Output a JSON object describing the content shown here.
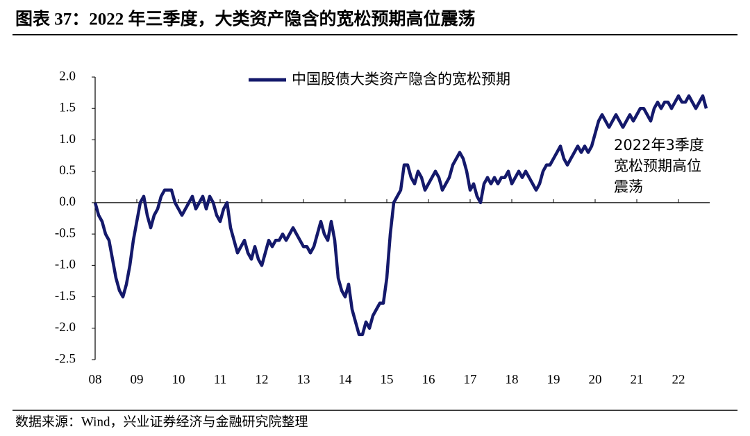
{
  "chart_data": {
    "type": "line",
    "title": "图表 37：2022 年三季度，大类资产隐含的宽松预期高位震荡",
    "source": "数据来源：Wind，兴业证券经济与金融研究院整理",
    "annotation": [
      "2022年3季度",
      "宽松预期高位",
      "震荡"
    ],
    "annotation_color": "#c0282d",
    "legend": "top",
    "categories": [
      "08",
      null,
      null,
      null,
      null,
      null,
      null,
      null,
      null,
      null,
      null,
      null,
      "09",
      null,
      null,
      null,
      null,
      null,
      null,
      null,
      null,
      null,
      null,
      null,
      "10",
      null,
      null,
      null,
      null,
      null,
      null,
      null,
      null,
      null,
      null,
      null,
      "11",
      null,
      null,
      null,
      null,
      null,
      null,
      null,
      null,
      null,
      null,
      null,
      "12",
      null,
      null,
      null,
      null,
      null,
      null,
      null,
      null,
      null,
      null,
      null,
      "13",
      null,
      null,
      null,
      null,
      null,
      null,
      null,
      null,
      null,
      null,
      null,
      "14",
      null,
      null,
      null,
      null,
      null,
      null,
      null,
      null,
      null,
      null,
      null,
      "15",
      null,
      null,
      null,
      null,
      null,
      null,
      null,
      null,
      null,
      null,
      null,
      "16",
      null,
      null,
      null,
      null,
      null,
      null,
      null,
      null,
      null,
      null,
      null,
      "17",
      null,
      null,
      null,
      null,
      null,
      null,
      null,
      null,
      null,
      null,
      null,
      "18",
      null,
      null,
      null,
      null,
      null,
      null,
      null,
      null,
      null,
      null,
      null,
      "19",
      null,
      null,
      null,
      null,
      null,
      null,
      null,
      null,
      null,
      null,
      null,
      "20",
      null,
      null,
      null,
      null,
      null,
      null,
      null,
      null,
      null,
      null,
      null,
      "21",
      null,
      null,
      null,
      null,
      null,
      null,
      null,
      null,
      null,
      null,
      null,
      "22",
      null,
      null,
      null,
      null,
      null,
      null,
      null,
      null
    ],
    "series": [
      {
        "name": "中国股债大类资产隐含的宽松预期",
        "color": "#14196b",
        "values": [
          0.0,
          -0.2,
          -0.3,
          -0.5,
          -0.6,
          -0.9,
          -1.2,
          -1.4,
          -1.5,
          -1.3,
          -1.0,
          -0.6,
          -0.3,
          0.0,
          0.1,
          -0.2,
          -0.4,
          -0.2,
          -0.1,
          0.1,
          0.2,
          0.2,
          0.2,
          0.0,
          -0.1,
          -0.2,
          -0.1,
          0.0,
          0.1,
          -0.1,
          0.0,
          0.1,
          -0.1,
          0.1,
          0.0,
          -0.2,
          -0.3,
          -0.1,
          0.0,
          -0.4,
          -0.6,
          -0.8,
          -0.7,
          -0.6,
          -0.8,
          -0.9,
          -0.7,
          -0.9,
          -1.0,
          -0.8,
          -0.6,
          -0.7,
          -0.6,
          -0.6,
          -0.5,
          -0.6,
          -0.5,
          -0.4,
          -0.5,
          -0.6,
          -0.7,
          -0.7,
          -0.8,
          -0.7,
          -0.5,
          -0.3,
          -0.5,
          -0.6,
          -0.3,
          -0.6,
          -1.2,
          -1.4,
          -1.5,
          -1.3,
          -1.7,
          -1.9,
          -2.1,
          -2.1,
          -1.9,
          -2.0,
          -1.8,
          -1.7,
          -1.6,
          -1.6,
          -1.2,
          -0.5,
          0.0,
          0.1,
          0.2,
          0.6,
          0.6,
          0.4,
          0.3,
          0.5,
          0.4,
          0.2,
          0.3,
          0.4,
          0.5,
          0.4,
          0.2,
          0.3,
          0.4,
          0.6,
          0.7,
          0.8,
          0.7,
          0.5,
          0.2,
          0.3,
          0.1,
          0.0,
          0.3,
          0.4,
          0.3,
          0.4,
          0.3,
          0.4,
          0.4,
          0.5,
          0.3,
          0.4,
          0.5,
          0.4,
          0.5,
          0.4,
          0.3,
          0.2,
          0.3,
          0.5,
          0.6,
          0.6,
          0.7,
          0.8,
          0.9,
          0.7,
          0.6,
          0.7,
          0.8,
          0.9,
          0.8,
          0.9,
          0.8,
          0.9,
          1.1,
          1.3,
          1.4,
          1.3,
          1.2,
          1.3,
          1.4,
          1.3,
          1.2,
          1.3,
          1.4,
          1.3,
          1.4,
          1.5,
          1.5,
          1.4,
          1.3,
          1.5,
          1.6,
          1.5,
          1.6,
          1.6,
          1.5,
          1.6,
          1.7,
          1.6,
          1.6,
          1.7,
          1.6,
          1.5,
          1.6,
          1.7,
          1.5
        ]
      }
    ],
    "ylim": [
      -2.5,
      2.0
    ],
    "yticks": [
      {
        "value": -2.5,
        "label": "-2.5"
      },
      {
        "value": -2.0,
        "label": "-2.0"
      },
      {
        "value": -1.5,
        "label": "-1.5"
      },
      {
        "value": -1.0,
        "label": "-1.0"
      },
      {
        "value": -0.5,
        "label": "-0.5"
      },
      {
        "value": 0,
        "label": "0.0"
      },
      {
        "value": 0.5,
        "label": "0.5"
      },
      {
        "value": 1.0,
        "label": "1.0"
      },
      {
        "value": 1.5,
        "label": "1.5"
      },
      {
        "value": 2.0,
        "label": "2.0"
      }
    ]
  }
}
